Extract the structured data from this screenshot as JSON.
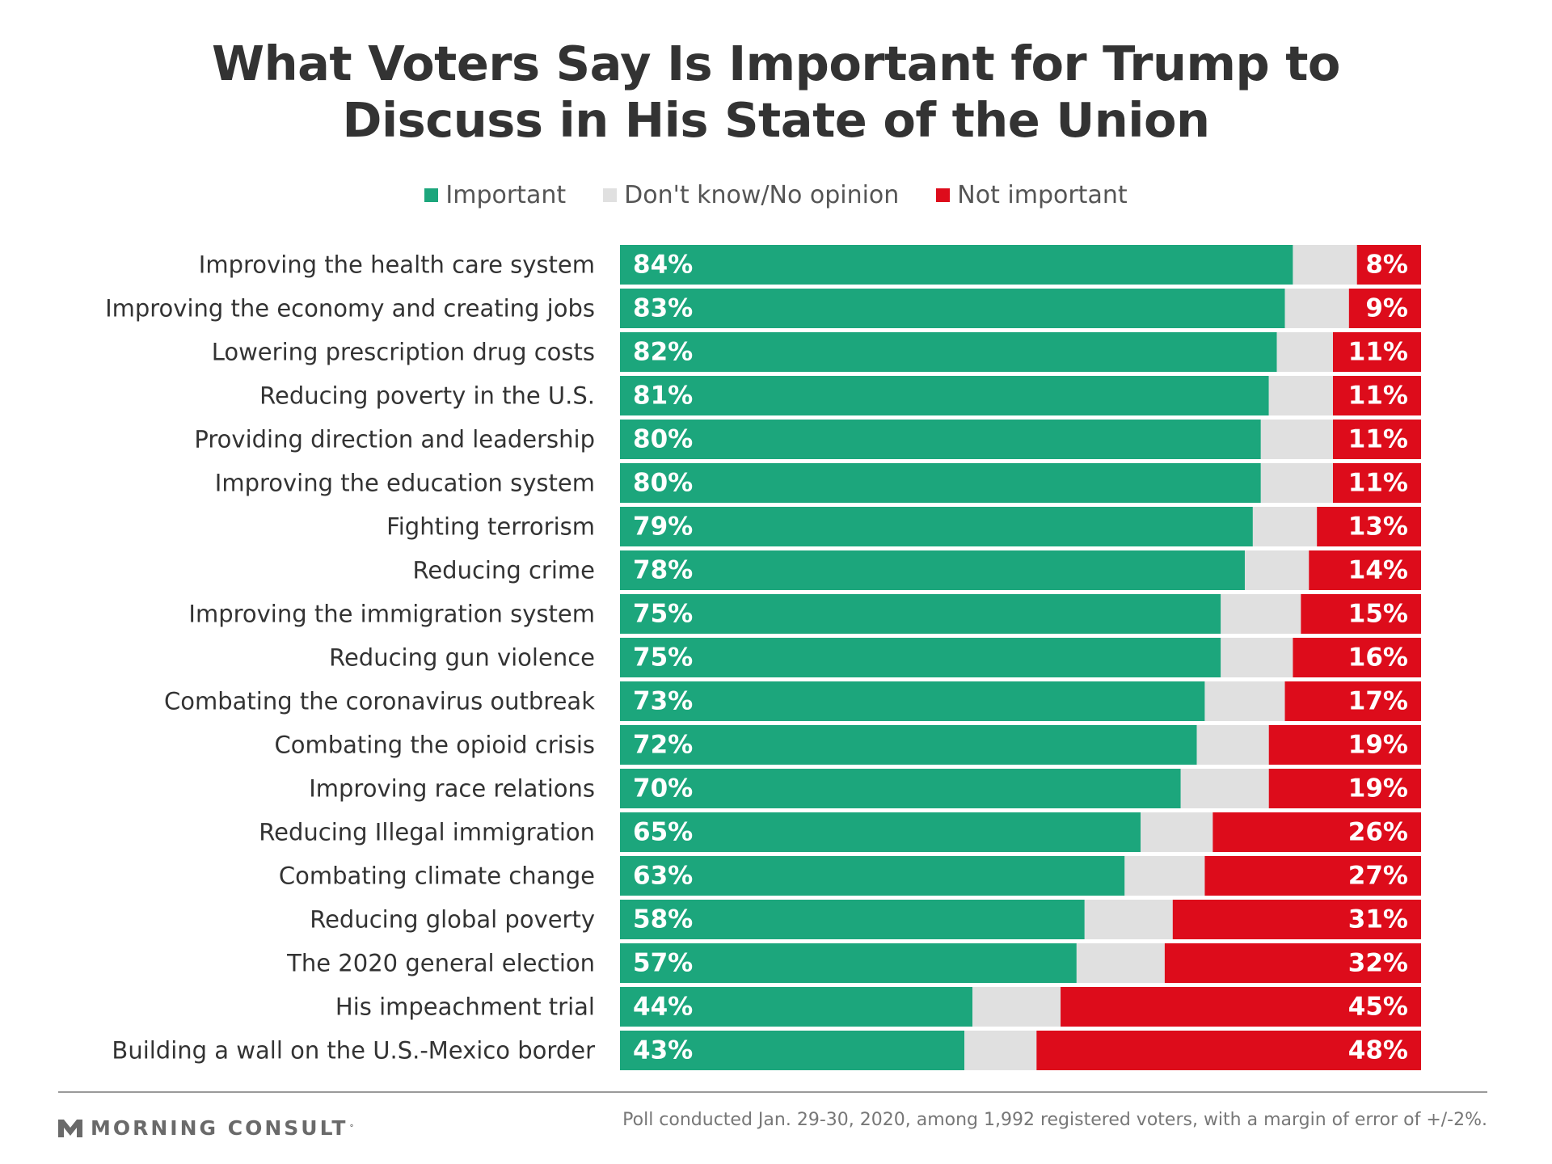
{
  "colors": {
    "important": "#1ca67c",
    "dont_know": "#e0e0e0",
    "not_important": "#dd0c1b",
    "label_text": "#333333",
    "value_text": "#ffffff"
  },
  "header": {
    "title_line1": "What Voters Say Is Important for Trump to",
    "title_line2": "Discuss in His State of the Union"
  },
  "legend": {
    "important_label": "Important",
    "dont_know_label": "Don't know/No opinion",
    "not_important_label": "Not important"
  },
  "chart_data": {
    "type": "bar",
    "orientation": "horizontal",
    "stacked": true,
    "title": "What Voters Say Is Important for Trump to Discuss in His State of the Union",
    "legend_position": "top-center",
    "xlim": [
      0,
      100
    ],
    "categories": [
      "Improving the health care system",
      "Improving the economy and creating jobs",
      "Lowering prescription drug costs",
      "Reducing poverty in the U.S.",
      "Providing direction and leadership",
      "Improving the education system",
      "Fighting terrorism",
      "Reducing crime",
      "Improving the immigration system",
      "Reducing gun violence",
      "Combating the coronavirus outbreak",
      "Combating the opioid crisis",
      "Improving race relations",
      "Reducing Illegal immigration",
      "Combating climate change",
      "Reducing global poverty",
      "The 2020 general election",
      "His impeachment trial",
      "Building a wall on the U.S.-Mexico border"
    ],
    "series": [
      {
        "name": "Important",
        "color": "#1ca67c",
        "values": [
          84,
          83,
          82,
          81,
          80,
          80,
          79,
          78,
          75,
          75,
          73,
          72,
          70,
          65,
          63,
          58,
          57,
          44,
          43
        ]
      },
      {
        "name": "Don't know/No opinion",
        "color": "#e0e0e0",
        "values": [
          8,
          8,
          7,
          8,
          9,
          9,
          8,
          8,
          10,
          9,
          10,
          9,
          11,
          9,
          10,
          11,
          11,
          11,
          9
        ]
      },
      {
        "name": "Not important",
        "color": "#dd0c1b",
        "values": [
          8,
          9,
          11,
          11,
          11,
          11,
          13,
          14,
          15,
          16,
          17,
          19,
          19,
          26,
          27,
          31,
          32,
          45,
          48
        ]
      }
    ],
    "data_labels": {
      "important": [
        "84%",
        "83%",
        "82%",
        "81%",
        "80%",
        "80%",
        "79%",
        "78%",
        "75%",
        "75%",
        "73%",
        "72%",
        "70%",
        "65%",
        "63%",
        "58%",
        "57%",
        "44%",
        "43%"
      ],
      "not_important": [
        "8%",
        "9%",
        "11%",
        "11%",
        "11%",
        "11%",
        "13%",
        "14%",
        "15%",
        "16%",
        "17%",
        "19%",
        "19%",
        "26%",
        "27%",
        "31%",
        "32%",
        "45%",
        "48%"
      ]
    }
  },
  "footer": {
    "brand": "MORNING CONSULT",
    "note": "Poll conducted Jan. 29-30, 2020, among 1,992 registered voters, with a margin of error of +/-2%."
  }
}
